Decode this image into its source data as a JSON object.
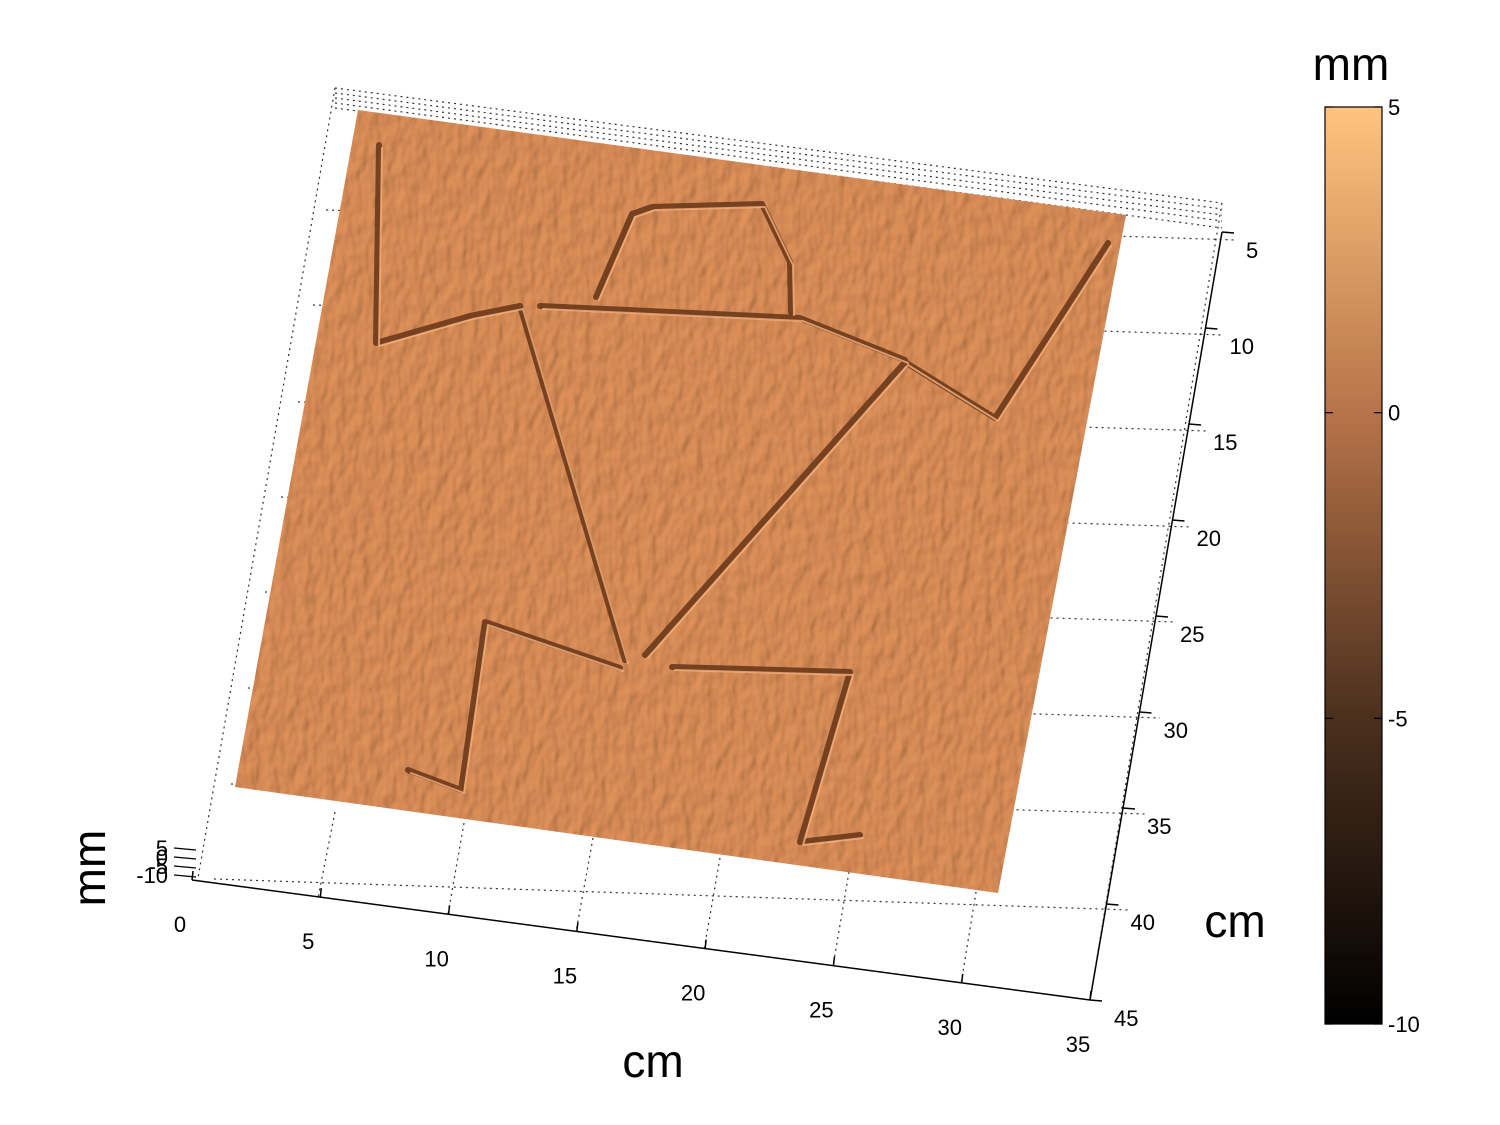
{
  "chart_data": {
    "type": "surface",
    "x_axis": {
      "label": "cm",
      "range": [
        0,
        35
      ],
      "ticks": [
        0,
        5,
        10,
        15,
        20,
        25,
        30,
        35
      ]
    },
    "y_axis": {
      "label": "cm",
      "range": [
        5,
        45
      ],
      "ticks": [
        5,
        10,
        15,
        20,
        25,
        30,
        35,
        40,
        45
      ]
    },
    "z_axis": {
      "label": "mm",
      "range": [
        -10,
        5
      ],
      "ticks": [
        -10,
        -5,
        0,
        5
      ]
    },
    "colorbar": {
      "label": "mm",
      "range": [
        -10,
        5
      ],
      "ticks": [
        5,
        0,
        -5,
        -10
      ],
      "colormap": "copper",
      "colors": [
        "#000000",
        "#5a3a24",
        "#b5734a",
        "#ffc47e"
      ]
    },
    "surface_color": "#e4945c",
    "grid": true,
    "engraving": "stick figure with hat, raised arms, triangular torso and bent legs cut into the surface as grooves"
  }
}
